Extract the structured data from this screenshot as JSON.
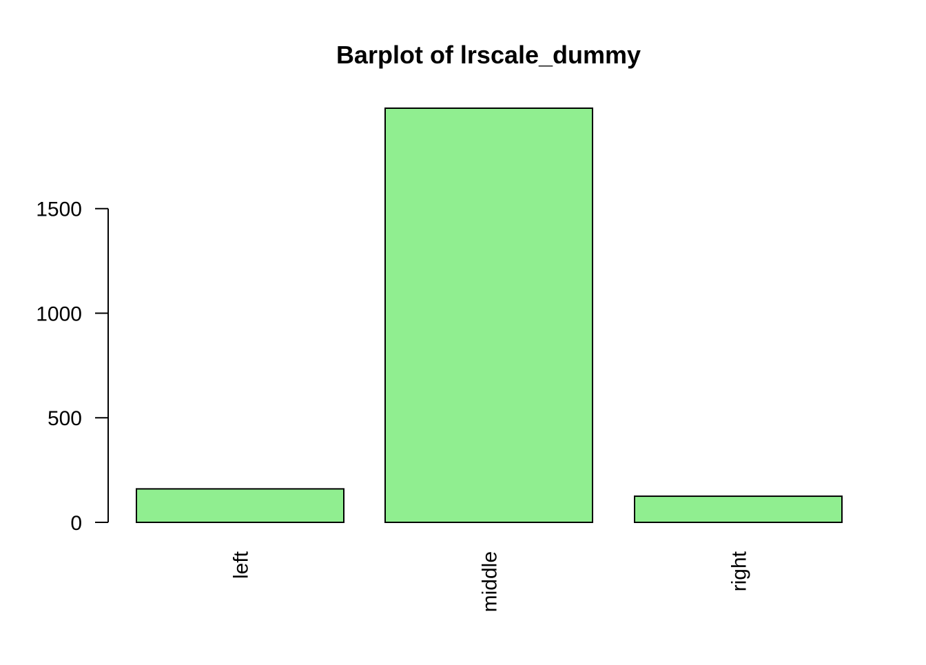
{
  "chart_data": {
    "type": "bar",
    "title": "Barplot of lrscale_dummy",
    "xlabel": "",
    "ylabel": "",
    "categories": [
      "left",
      "middle",
      "right"
    ],
    "values": [
      160,
      1980,
      125
    ],
    "ylim": [
      0,
      1980
    ],
    "y_ticks": [
      0,
      500,
      1000,
      1500
    ],
    "y_tick_labels": [
      "0",
      "500",
      "1000",
      "1500"
    ],
    "bar_color": "#90EE90",
    "border_color": "#000000",
    "grid": false,
    "legend": "none"
  }
}
